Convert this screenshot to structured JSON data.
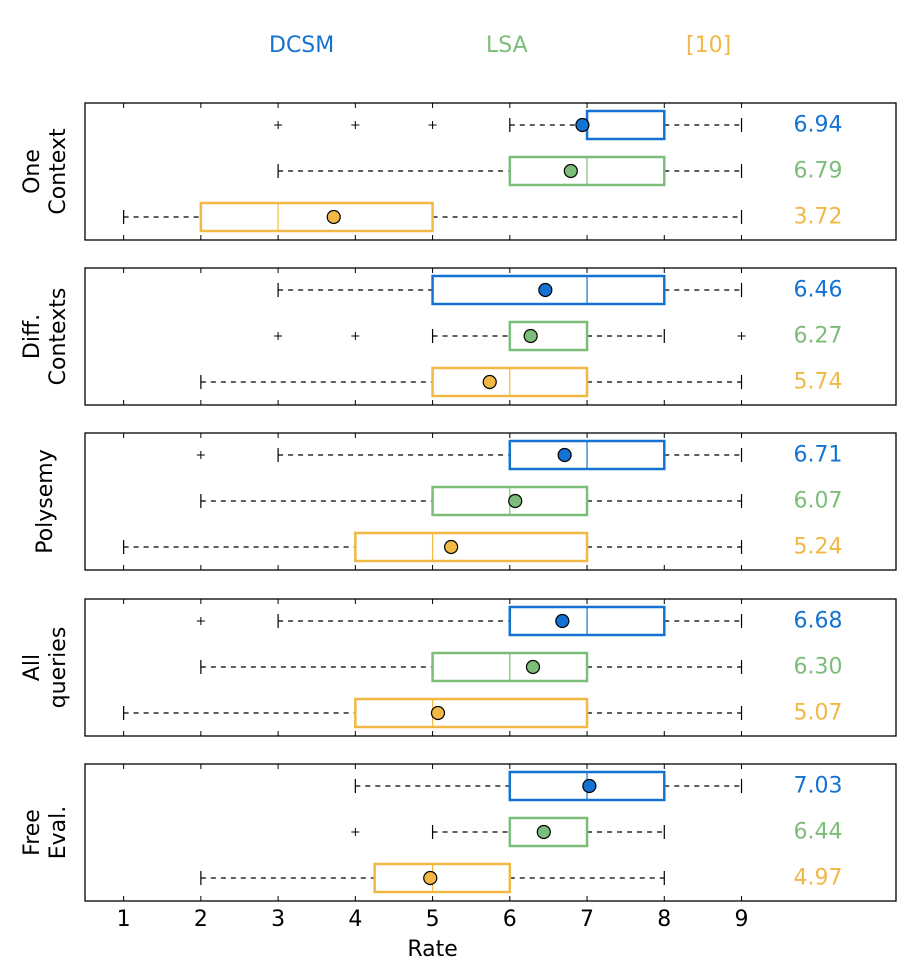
{
  "chart_data": {
    "type": "boxplot",
    "xlabel": "Rate",
    "xlim": [
      0.5,
      11
    ],
    "xticks": [
      1,
      2,
      3,
      4,
      5,
      6,
      7,
      8,
      9
    ],
    "legend_placement": "top",
    "series": [
      {
        "name": "DCSM",
        "color": "#1473d2"
      },
      {
        "name": "LSA",
        "color": "#7cbd7a"
      },
      {
        "name": "[10]",
        "color": "#f1b846"
      }
    ],
    "panels": [
      {
        "label": [
          "One",
          "Context"
        ],
        "boxes": [
          {
            "series": "DCSM",
            "whisker_low": 6,
            "q1": 7,
            "median": 7,
            "q3": 8,
            "whisker_high": 9,
            "mean": 6.94,
            "outliers": [
              3,
              4,
              5
            ]
          },
          {
            "series": "LSA",
            "whisker_low": 3,
            "q1": 6,
            "median": 7,
            "q3": 8,
            "whisker_high": 9,
            "mean": 6.79,
            "outliers": []
          },
          {
            "series": "[10]",
            "whisker_low": 1,
            "q1": 2,
            "median": 3,
            "q3": 5,
            "whisker_high": 9,
            "mean": 3.72,
            "outliers": []
          }
        ]
      },
      {
        "label": [
          "Diff.",
          "Contexts"
        ],
        "boxes": [
          {
            "series": "DCSM",
            "whisker_low": 3,
            "q1": 5,
            "median": 7,
            "q3": 8,
            "whisker_high": 9,
            "mean": 6.46,
            "outliers": []
          },
          {
            "series": "LSA",
            "whisker_low": 5,
            "q1": 6,
            "median": 6,
            "q3": 7,
            "whisker_high": 8,
            "mean": 6.27,
            "outliers": [
              3,
              4,
              9
            ]
          },
          {
            "series": "[10]",
            "whisker_low": 2,
            "q1": 5,
            "median": 6,
            "q3": 7,
            "whisker_high": 9,
            "mean": 5.74,
            "outliers": []
          }
        ]
      },
      {
        "label": [
          "Polysemy"
        ],
        "boxes": [
          {
            "series": "DCSM",
            "whisker_low": 3,
            "q1": 6,
            "median": 7,
            "q3": 8,
            "whisker_high": 9,
            "mean": 6.71,
            "outliers": [
              2
            ]
          },
          {
            "series": "LSA",
            "whisker_low": 2,
            "q1": 5,
            "median": 6,
            "q3": 7,
            "whisker_high": 9,
            "mean": 6.07,
            "outliers": []
          },
          {
            "series": "[10]",
            "whisker_low": 1,
            "q1": 4,
            "median": 5,
            "q3": 7,
            "whisker_high": 9,
            "mean": 5.24,
            "outliers": []
          }
        ]
      },
      {
        "label": [
          "All",
          "queries"
        ],
        "boxes": [
          {
            "series": "DCSM",
            "whisker_low": 3,
            "q1": 6,
            "median": 7,
            "q3": 8,
            "whisker_high": 9,
            "mean": 6.68,
            "outliers": [
              2
            ]
          },
          {
            "series": "LSA",
            "whisker_low": 2,
            "q1": 5,
            "median": 6,
            "q3": 7,
            "whisker_high": 9,
            "mean": 6.3,
            "outliers": []
          },
          {
            "series": "[10]",
            "whisker_low": 1,
            "q1": 4,
            "median": 5,
            "q3": 7,
            "whisker_high": 9,
            "mean": 5.07,
            "outliers": []
          }
        ]
      },
      {
        "label": [
          "Free",
          "Eval."
        ],
        "boxes": [
          {
            "series": "DCSM",
            "whisker_low": 4,
            "q1": 6,
            "median": 7,
            "q3": 8,
            "whisker_high": 9,
            "mean": 7.03,
            "outliers": []
          },
          {
            "series": "LSA",
            "whisker_low": 5,
            "q1": 6,
            "median": 6,
            "q3": 7,
            "whisker_high": 8,
            "mean": 6.44,
            "outliers": [
              4
            ]
          },
          {
            "series": "[10]",
            "whisker_low": 2,
            "q1": 4.25,
            "median": 5,
            "q3": 6,
            "whisker_high": 8,
            "mean": 4.97,
            "outliers": []
          }
        ]
      }
    ],
    "mean_labels": [
      [
        "6.94",
        "6.79",
        "3.72"
      ],
      [
        "6.46",
        "6.27",
        "5.74"
      ],
      [
        "6.71",
        "6.07",
        "5.24"
      ],
      [
        "6.68",
        "6.30",
        "5.07"
      ],
      [
        "7.03",
        "6.44",
        "4.97"
      ]
    ]
  }
}
